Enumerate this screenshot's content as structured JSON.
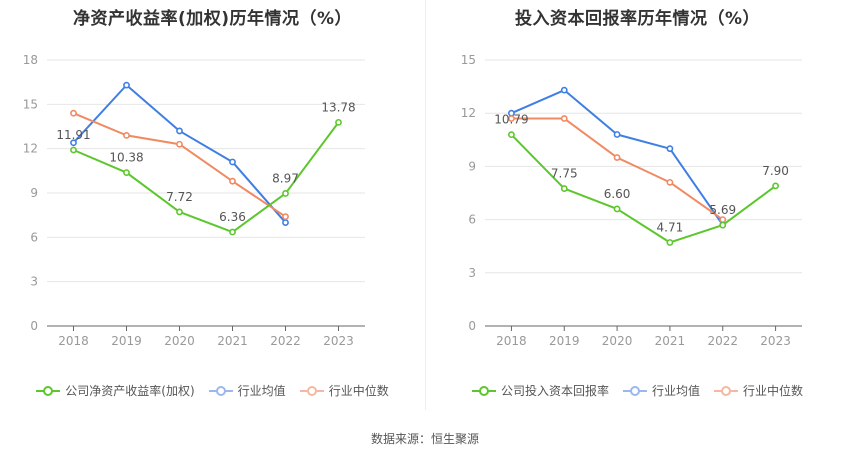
{
  "source": "数据来源：恒生聚源",
  "charts": [
    {
      "id": "roe",
      "title": "净资产收益率(加权)历年情况（%）",
      "legend": [
        "公司净资产收益率(加权)",
        "行业均值",
        "行业中位数"
      ]
    },
    {
      "id": "roi",
      "title": "投入资本回报率历年情况（%）",
      "legend": [
        "公司投入资本回报率",
        "行业均值",
        "行业中位数"
      ]
    }
  ],
  "chart_data": [
    {
      "type": "line",
      "title": "净资产收益率(加权)历年情况（%）",
      "categories": [
        "2018",
        "2019",
        "2020",
        "2021",
        "2022",
        "2023"
      ],
      "ylim": [
        0,
        18
      ],
      "yticks": [
        0,
        3,
        6,
        9,
        12,
        15,
        18
      ],
      "grid": true,
      "legend_position": "bottom",
      "series": [
        {
          "name": "公司净资产收益率(加权)",
          "color": "#5cc72c",
          "labeled": true,
          "values": [
            11.91,
            10.38,
            7.72,
            6.36,
            8.97,
            13.78
          ],
          "labels": [
            "11.91",
            "10.38",
            "7.72",
            "6.36",
            "8.97",
            "13.78"
          ]
        },
        {
          "name": "行业均值",
          "color": "#3f7fe3",
          "values": [
            12.4,
            16.3,
            13.2,
            11.1,
            7.0,
            null
          ]
        },
        {
          "name": "行业中位数",
          "color": "#f08a62",
          "values": [
            14.4,
            12.9,
            12.3,
            9.8,
            7.4,
            null
          ]
        }
      ]
    },
    {
      "type": "line",
      "title": "投入资本回报率历年情况（%）",
      "categories": [
        "2018",
        "2019",
        "2020",
        "2021",
        "2022",
        "2023"
      ],
      "ylim": [
        0,
        15
      ],
      "yticks": [
        0,
        3,
        6,
        9,
        12,
        15
      ],
      "grid": true,
      "legend_position": "bottom",
      "series": [
        {
          "name": "公司投入资本回报率",
          "color": "#5cc72c",
          "labeled": true,
          "values": [
            10.79,
            7.75,
            6.6,
            4.71,
            5.69,
            7.9
          ],
          "labels": [
            "10.79",
            "7.75",
            "6.60",
            "4.71",
            "5.69",
            "7.90"
          ]
        },
        {
          "name": "行业均值",
          "color": "#3f7fe3",
          "values": [
            12.0,
            13.3,
            10.8,
            10.0,
            5.7,
            null
          ]
        },
        {
          "name": "行业中位数",
          "color": "#f08a62",
          "values": [
            11.7,
            11.7,
            9.5,
            8.1,
            6.0,
            null
          ]
        }
      ]
    }
  ]
}
